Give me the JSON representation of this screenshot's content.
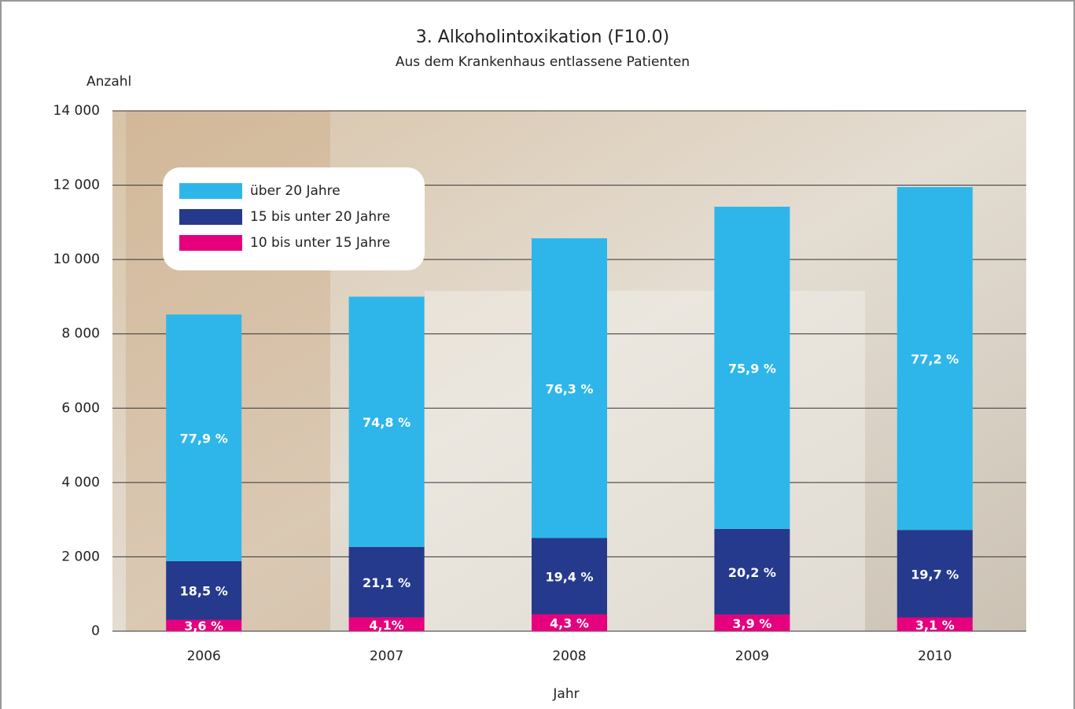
{
  "chart_data": {
    "type": "stacked_bar",
    "title": "3. Alkoholintoxikation (F10.0)",
    "subtitle": "Aus dem Krankenhaus entlassene Patienten",
    "y_label": "Anzahl",
    "x_label": "Jahr",
    "categories": [
      "2006",
      "2007",
      "2008",
      "2009",
      "2010"
    ],
    "series": [
      {
        "name": "10 bis unter 15 Jahre",
        "color": "#e6007e",
        "values": [
          307,
          369,
          455,
          445,
          370
        ],
        "segment_labels": [
          "3,6 %",
          "4,1%",
          "4,3 %",
          "3,9 %",
          "3,1 %"
        ]
      },
      {
        "name": "15 bis unter 20 Jahre",
        "color": "#253a8c",
        "values": [
          1576,
          1899,
          2051,
          2307,
          2354
        ],
        "segment_labels": [
          "18,5 %",
          "21,1 %",
          "19,4 %",
          "20,2 %",
          "19,7 %"
        ]
      },
      {
        "name": "über 20 Jahre",
        "color": "#2eb6ea",
        "values": [
          6637,
          6732,
          8065,
          8668,
          9225
        ],
        "segment_labels": [
          "77,9 %",
          "74,8 %",
          "76,3 %",
          "75,9 %",
          "77,2 %"
        ]
      }
    ],
    "ylim": [
      0,
      14000
    ],
    "yticks": [
      0,
      {
        "value": 2000,
        "label": "2 000"
      },
      {
        "value": 4000,
        "label": "4 000"
      },
      {
        "value": 6000,
        "label": "6 000"
      },
      {
        "value": 8000,
        "label": "8 000"
      },
      {
        "value": 10000,
        "label": "10 000"
      },
      {
        "value": 12000,
        "label": "12 000"
      },
      {
        "value": 14000,
        "label": "14 000"
      }
    ],
    "grid": true,
    "legend": "upper left"
  }
}
